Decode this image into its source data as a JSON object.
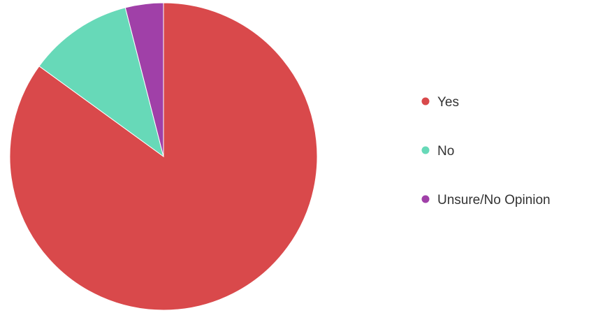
{
  "chart_data": {
    "type": "pie",
    "title": "",
    "legend_position": "right",
    "slices": [
      {
        "label": "Yes",
        "value": 85,
        "color": "#d9494b"
      },
      {
        "label": "No",
        "value": 11,
        "color": "#67d9b8"
      },
      {
        "label": "Unsure/No Opinion",
        "value": 4,
        "color": "#a040a8"
      }
    ]
  }
}
